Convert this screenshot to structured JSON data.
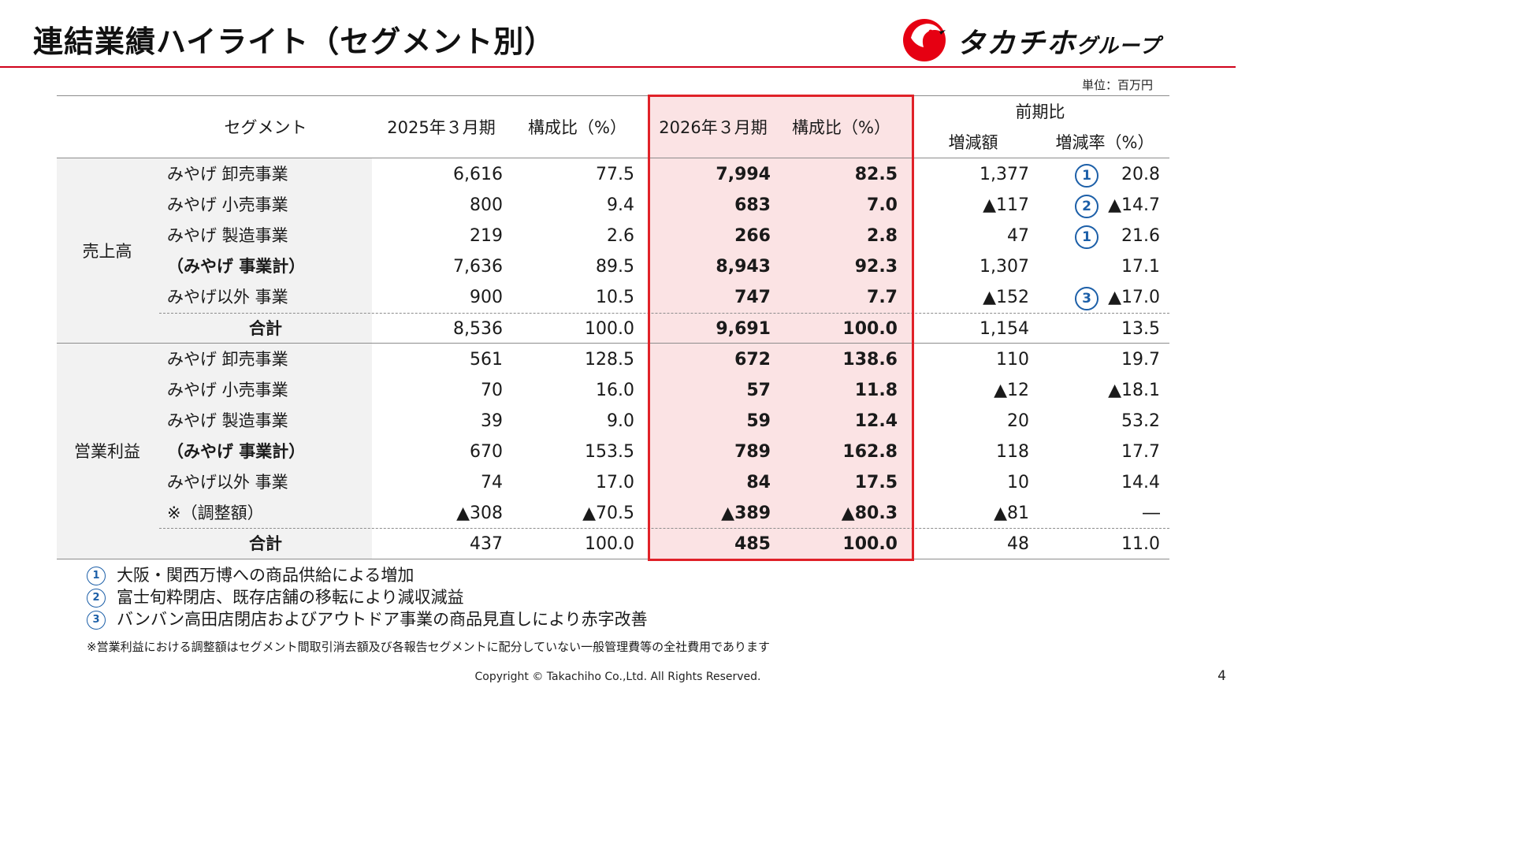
{
  "title": "連結業績ハイライト（セグメント別）",
  "logo": {
    "name": "タカチホ",
    "suffix": "グループ"
  },
  "unit": "単位：百万円",
  "headers": {
    "segment": "セグメント",
    "fy2025": "2025年３月期",
    "ratio2025": "構成比（%）",
    "fy2026": "2026年３月期",
    "ratio2026": "構成比（%）",
    "yoy": "前期比",
    "change_amount": "増減額",
    "change_rate": "増減率（%）"
  },
  "sections": [
    {
      "label": "売上高",
      "rows": [
        {
          "segment": "みやげ 卸売事業",
          "fy2025": "6,616",
          "ratio2025": "77.5",
          "fy2026": "7,994",
          "ratio2026": "82.5",
          "change": "1,377",
          "rate": "20.8",
          "marker": "1"
        },
        {
          "segment": "みやげ 小売事業",
          "fy2025": "800",
          "ratio2025": "9.4",
          "fy2026": "683",
          "ratio2026": "7.0",
          "change": "▲117",
          "rate": "▲14.7",
          "marker": "2"
        },
        {
          "segment": "みやげ 製造事業",
          "fy2025": "219",
          "ratio2025": "2.6",
          "fy2026": "266",
          "ratio2026": "2.8",
          "change": "47",
          "rate": "21.6",
          "marker": "1"
        },
        {
          "segment": "（みやげ 事業計）",
          "fy2025": "7,636",
          "ratio2025": "89.5",
          "fy2026": "8,943",
          "ratio2026": "92.3",
          "change": "1,307",
          "rate": "17.1",
          "marker": ""
        },
        {
          "segment": "みやげ以外 事業",
          "fy2025": "900",
          "ratio2025": "10.5",
          "fy2026": "747",
          "ratio2026": "7.7",
          "change": "▲152",
          "rate": "▲17.0",
          "marker": "3"
        },
        {
          "segment": "合計",
          "fy2025": "8,536",
          "ratio2025": "100.0",
          "fy2026": "9,691",
          "ratio2026": "100.0",
          "change": "1,154",
          "rate": "13.5",
          "marker": ""
        }
      ]
    },
    {
      "label": "営業利益",
      "rows": [
        {
          "segment": "みやげ 卸売事業",
          "fy2025": "561",
          "ratio2025": "128.5",
          "fy2026": "672",
          "ratio2026": "138.6",
          "change": "110",
          "rate": "19.7",
          "marker": ""
        },
        {
          "segment": "みやげ 小売事業",
          "fy2025": "70",
          "ratio2025": "16.0",
          "fy2026": "57",
          "ratio2026": "11.8",
          "change": "▲12",
          "rate": "▲18.1",
          "marker": ""
        },
        {
          "segment": "みやげ 製造事業",
          "fy2025": "39",
          "ratio2025": "9.0",
          "fy2026": "59",
          "ratio2026": "12.4",
          "change": "20",
          "rate": "53.2",
          "marker": ""
        },
        {
          "segment": "（みやげ 事業計）",
          "fy2025": "670",
          "ratio2025": "153.5",
          "fy2026": "789",
          "ratio2026": "162.8",
          "change": "118",
          "rate": "17.7",
          "marker": ""
        },
        {
          "segment": "みやげ以外 事業",
          "fy2025": "74",
          "ratio2025": "17.0",
          "fy2026": "84",
          "ratio2026": "17.5",
          "change": "10",
          "rate": "14.4",
          "marker": ""
        },
        {
          "segment": "※（調整額）",
          "fy2025": "▲308",
          "ratio2025": "▲70.5",
          "fy2026": "▲389",
          "ratio2026": "▲80.3",
          "change": "▲81",
          "rate": "―",
          "marker": ""
        },
        {
          "segment": "合計",
          "fy2025": "437",
          "ratio2025": "100.0",
          "fy2026": "485",
          "ratio2026": "100.0",
          "change": "48",
          "rate": "11.0",
          "marker": ""
        }
      ]
    }
  ],
  "notes": [
    {
      "num": "1",
      "text": "大阪・関西万博への商品供給による増加"
    },
    {
      "num": "2",
      "text": "富士旬粋閉店、既存店舗の移転により減収減益"
    },
    {
      "num": "3",
      "text": "バンバン高田店閉店およびアウトドア事業の商品見直しにより赤字改善"
    }
  ],
  "footnote": "※営業利益における調整額はセグメント間取引消去額及び各報告セグメントに配分していない一般管理費等の全社費用であります",
  "copyright": "Copyright © Takachiho Co.,Ltd. All Rights Reserved.",
  "page_number": "4",
  "colors": {
    "accent_red": "#e02128",
    "highlight_pink": "#fbe3e4",
    "marker_blue": "#1c5fa8",
    "band_gray": "#f2f2f2"
  },
  "icons": {
    "logo_mark": "red-bird-circle-icon"
  }
}
